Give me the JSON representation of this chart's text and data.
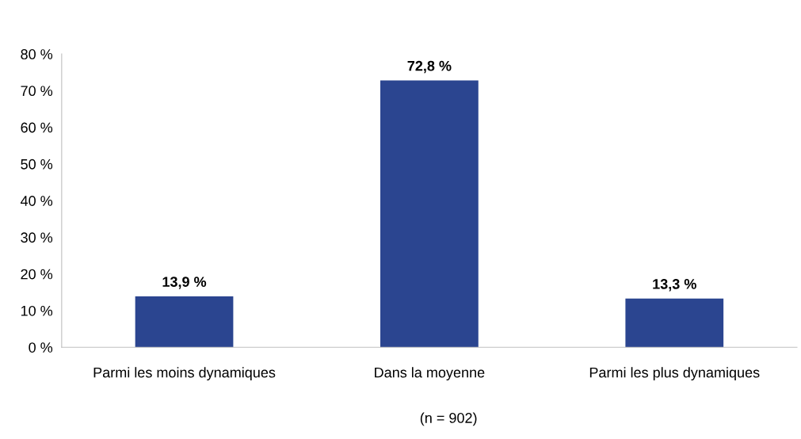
{
  "chart_data": {
    "type": "bar",
    "categories": [
      "Parmi les moins dynamiques",
      "Dans la moyenne",
      "Parmi les plus dynamiques"
    ],
    "values": [
      13.9,
      72.8,
      13.3
    ],
    "color": "#2b4590",
    "value_labels": [
      "13,9 %",
      "72,8 %",
      "13,3 %"
    ],
    "ylim": [
      0,
      80
    ],
    "yticks": [
      {
        "value": 0,
        "label": "0 %"
      },
      {
        "value": 10,
        "label": "10 %"
      },
      {
        "value": 20,
        "label": "20 %"
      },
      {
        "value": 30,
        "label": "30 %"
      },
      {
        "value": 40,
        "label": "40 %"
      },
      {
        "value": 50,
        "label": "50 %"
      },
      {
        "value": 60,
        "label": "60 %"
      },
      {
        "value": 70,
        "label": "70 %"
      },
      {
        "value": 80,
        "label": "80 %"
      }
    ],
    "grid": false,
    "legend": false,
    "annotations": [
      "(n = 902)"
    ]
  }
}
